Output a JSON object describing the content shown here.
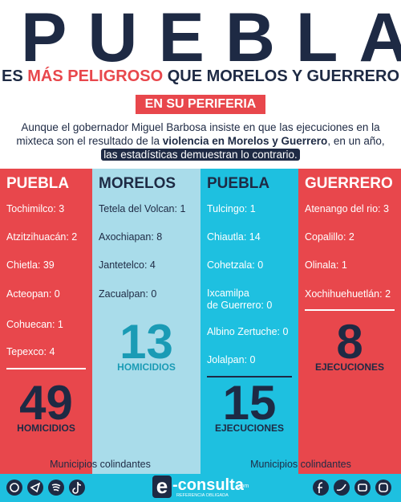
{
  "header": {
    "title": "PUEBLA",
    "subtitle": [
      "ES ",
      "MÁS PELIGROSO",
      " QUE MORELOS Y GUERRERO"
    ],
    "banner": "EN SU PERIFERIA"
  },
  "intro": [
    "Aunque el gobernador Miguel Barbosa insiste en que las ejecuciones en la mixteca son el resultado de la ",
    "violencia en Morelos y Guerrero",
    ", en un año, ",
    "las estadísticas demuestran lo contrario."
  ],
  "columns": [
    {
      "title": "PUEBLA",
      "items": [
        "Tochimilco: 3",
        "Atzitzihuacán: 2",
        "Chietla: 39",
        "Acteopan: 0",
        "Cohuecan: 1",
        "Tepexco: 4"
      ],
      "total": "49",
      "label": "HOMICIDIOS"
    },
    {
      "title": "MORELOS",
      "items": [
        "Tetela del Volcan: 1",
        "Axochiapan: 8",
        "Jantetelco: 4",
        "Zacualpan: 0"
      ],
      "total": "13",
      "label": "HOMICIDIOS"
    },
    {
      "title": "PUEBLA",
      "items": [
        "Tulcingo: 1",
        "Chiautla: 14",
        "Cohetzala: 0",
        "Ixcamilpa\nde Guerrero: 0",
        "Albino Zertuche: 0",
        "Jolalpan: 0"
      ],
      "total": "15",
      "label": "EJECUCIONES"
    },
    {
      "title": "GUERRERO",
      "items": [
        "Atenango del rio: 3",
        "Copalillo: 2",
        "Olinala: 1",
        "Xochihuehuetlán: 2"
      ],
      "total": "8",
      "label": "EJECUCIONES"
    }
  ],
  "notes": [
    "Municipios colindantes",
    "Municipios colindantes"
  ],
  "logo": {
    "mark": "e",
    "name": "-consulta",
    "domain": ".com",
    "tagline": "REFERENCIA OBLIGADA"
  }
}
